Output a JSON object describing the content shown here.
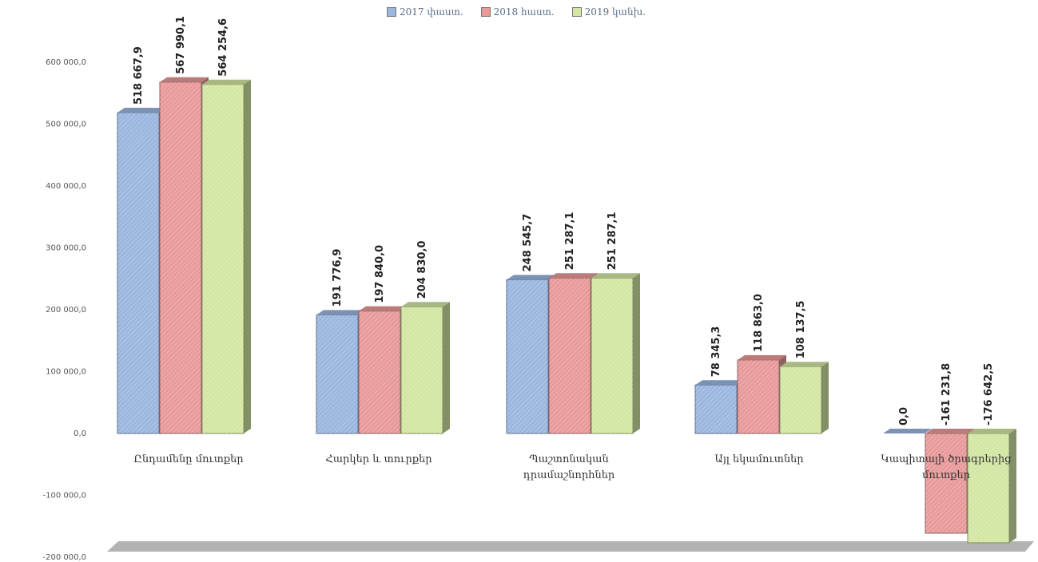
{
  "chart_data": {
    "type": "bar",
    "categories": [
      [
        "Ընդամենը մուտքեր"
      ],
      [
        "Հարկեր և տուրքեր"
      ],
      [
        "Պաշտոնական",
        "դրամաշնորհներ"
      ],
      [
        "Այլ եկամուտներ"
      ],
      [
        "Կապիտալի ծրագրերից",
        "մուտքեր"
      ]
    ],
    "series": [
      {
        "name": "2017 փաստ.",
        "color": "#9bb7e0",
        "values": [
          518667.9,
          191776.9,
          248545.7,
          78345.3,
          0.0
        ],
        "labels": [
          "518 667,9",
          "191 776,9",
          "248 545,7",
          "78 345,3",
          "0,0"
        ]
      },
      {
        "name": "2018 հաստ.",
        "color": "#e89a9a",
        "values": [
          567990.1,
          197840.0,
          251287.1,
          118863.0,
          -161231.8
        ],
        "labels": [
          "567 990,1",
          "197 840,0",
          "251 287,1",
          "118 863,0",
          "-161 231,8"
        ]
      },
      {
        "name": "2019 կանխ.",
        "color": "#d3e6a3",
        "values": [
          564254.6,
          204830.0,
          251287.1,
          108137.5,
          -176642.5
        ],
        "labels": [
          "564 254,6",
          "204 830,0",
          "251 287,1",
          "108 137,5",
          "-176 642,5"
        ]
      }
    ],
    "yticks": [
      {
        "value": 600000,
        "label": "600 000,0"
      },
      {
        "value": 500000,
        "label": "500 000,0"
      },
      {
        "value": 400000,
        "label": "400 000,0"
      },
      {
        "value": 300000,
        "label": "300 000,0"
      },
      {
        "value": 200000,
        "label": "200 000,0"
      },
      {
        "value": 100000,
        "label": "100 000,0"
      },
      {
        "value": 0,
        "label": "0,0"
      },
      {
        "value": -100000,
        "label": "-100 000,0"
      },
      {
        "value": -200000,
        "label": "-200 000,0"
      }
    ],
    "ylim": [
      -200000,
      600000
    ],
    "legend_position": "top-center",
    "grid": false
  }
}
